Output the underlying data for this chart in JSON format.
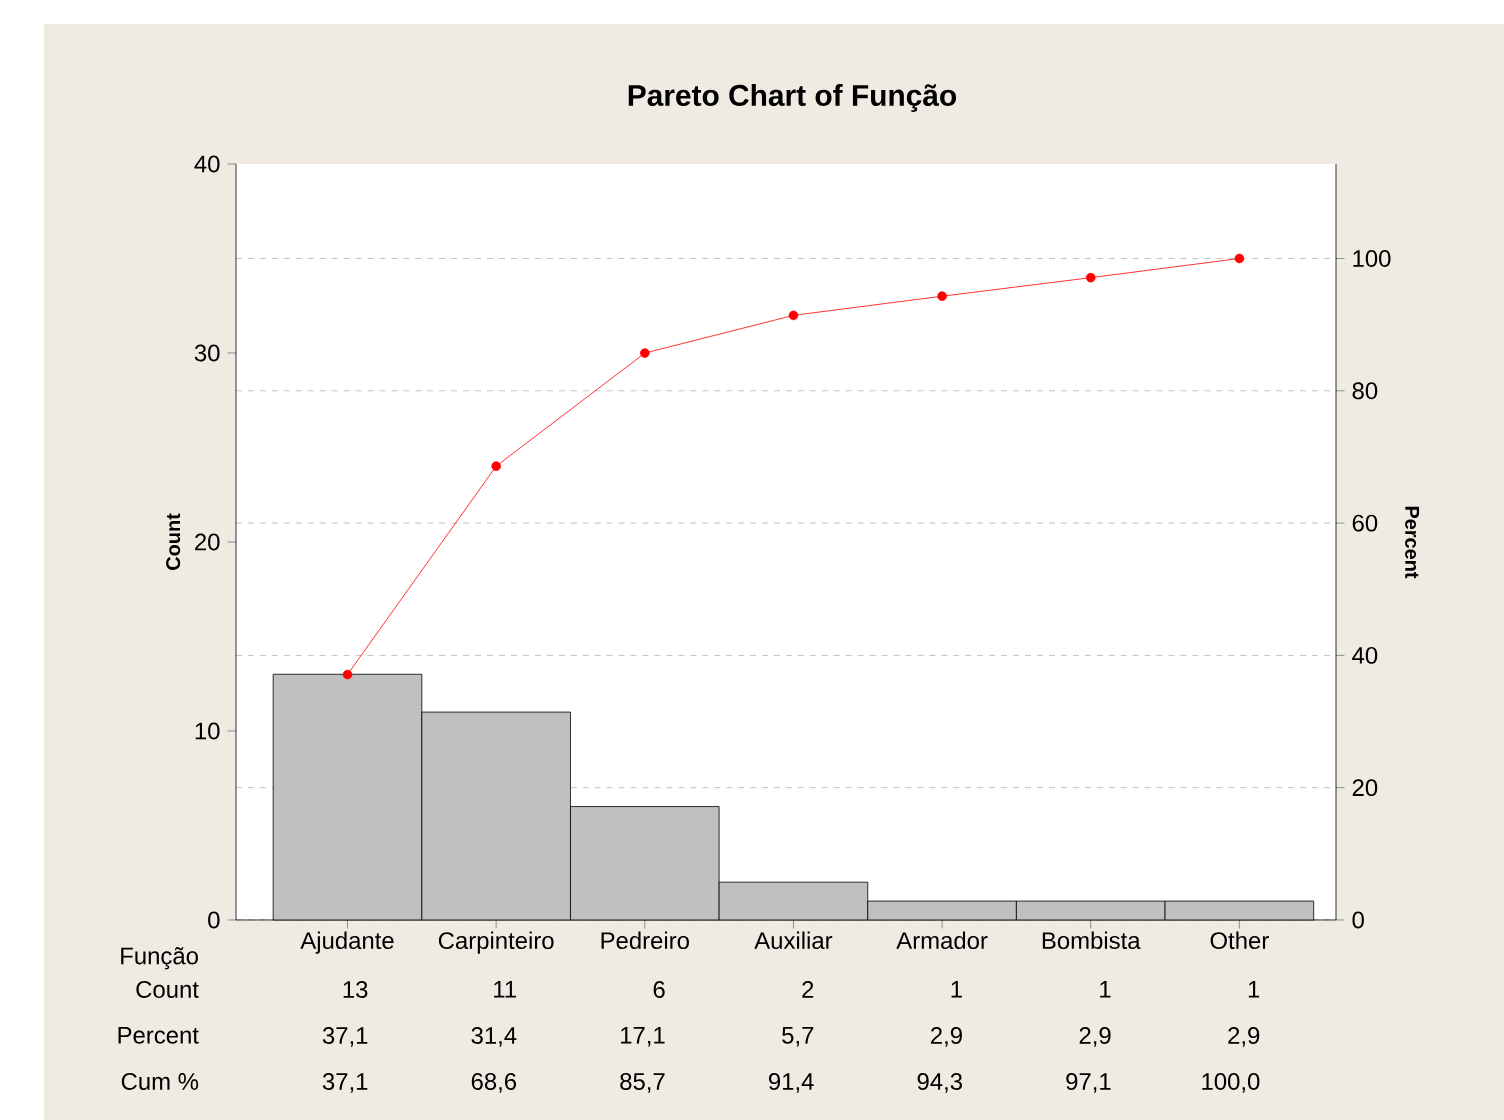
{
  "chart_data": {
    "type": "bar",
    "title": "Pareto Chart of Função",
    "xlabel": "Função",
    "ylabel": "Count",
    "y2label": "Percent",
    "categories": [
      "Ajudante",
      "Carpinteiro",
      "Pedreiro",
      "Auxiliar",
      "Armador",
      "Bombista",
      "Other"
    ],
    "series": [
      {
        "color": "#c0c0c0",
        "values": [
          13,
          11,
          6,
          2,
          1,
          1,
          1
        ],
        "value_labels": [
          "13",
          "11",
          "6",
          "2",
          "1",
          "1",
          "1"
        ]
      },
      {
        "type": "line",
        "axis": "y2",
        "color": "#ff0000",
        "values": [
          37.1,
          68.6,
          85.7,
          91.4,
          94.3,
          97.1,
          100.0
        ],
        "value_labels": [
          "37,1",
          "68,6",
          "85,7",
          "91,4",
          "94,3",
          "97,1",
          "100,0"
        ]
      }
    ],
    "ylim": [
      0,
      40
    ],
    "yticks": [
      0,
      10,
      20,
      30,
      40
    ],
    "y2lim": [
      0,
      114.29
    ],
    "y2ticks": [
      0,
      20,
      40,
      60,
      80,
      100
    ],
    "grid": "y2",
    "marker": "circle",
    "annotations": [
      "Count",
      "Percent",
      "Cum %",
      "37,1",
      "31,4",
      "17,1",
      "5,7",
      "2,9",
      "2,9",
      "2,9"
    ]
  }
}
